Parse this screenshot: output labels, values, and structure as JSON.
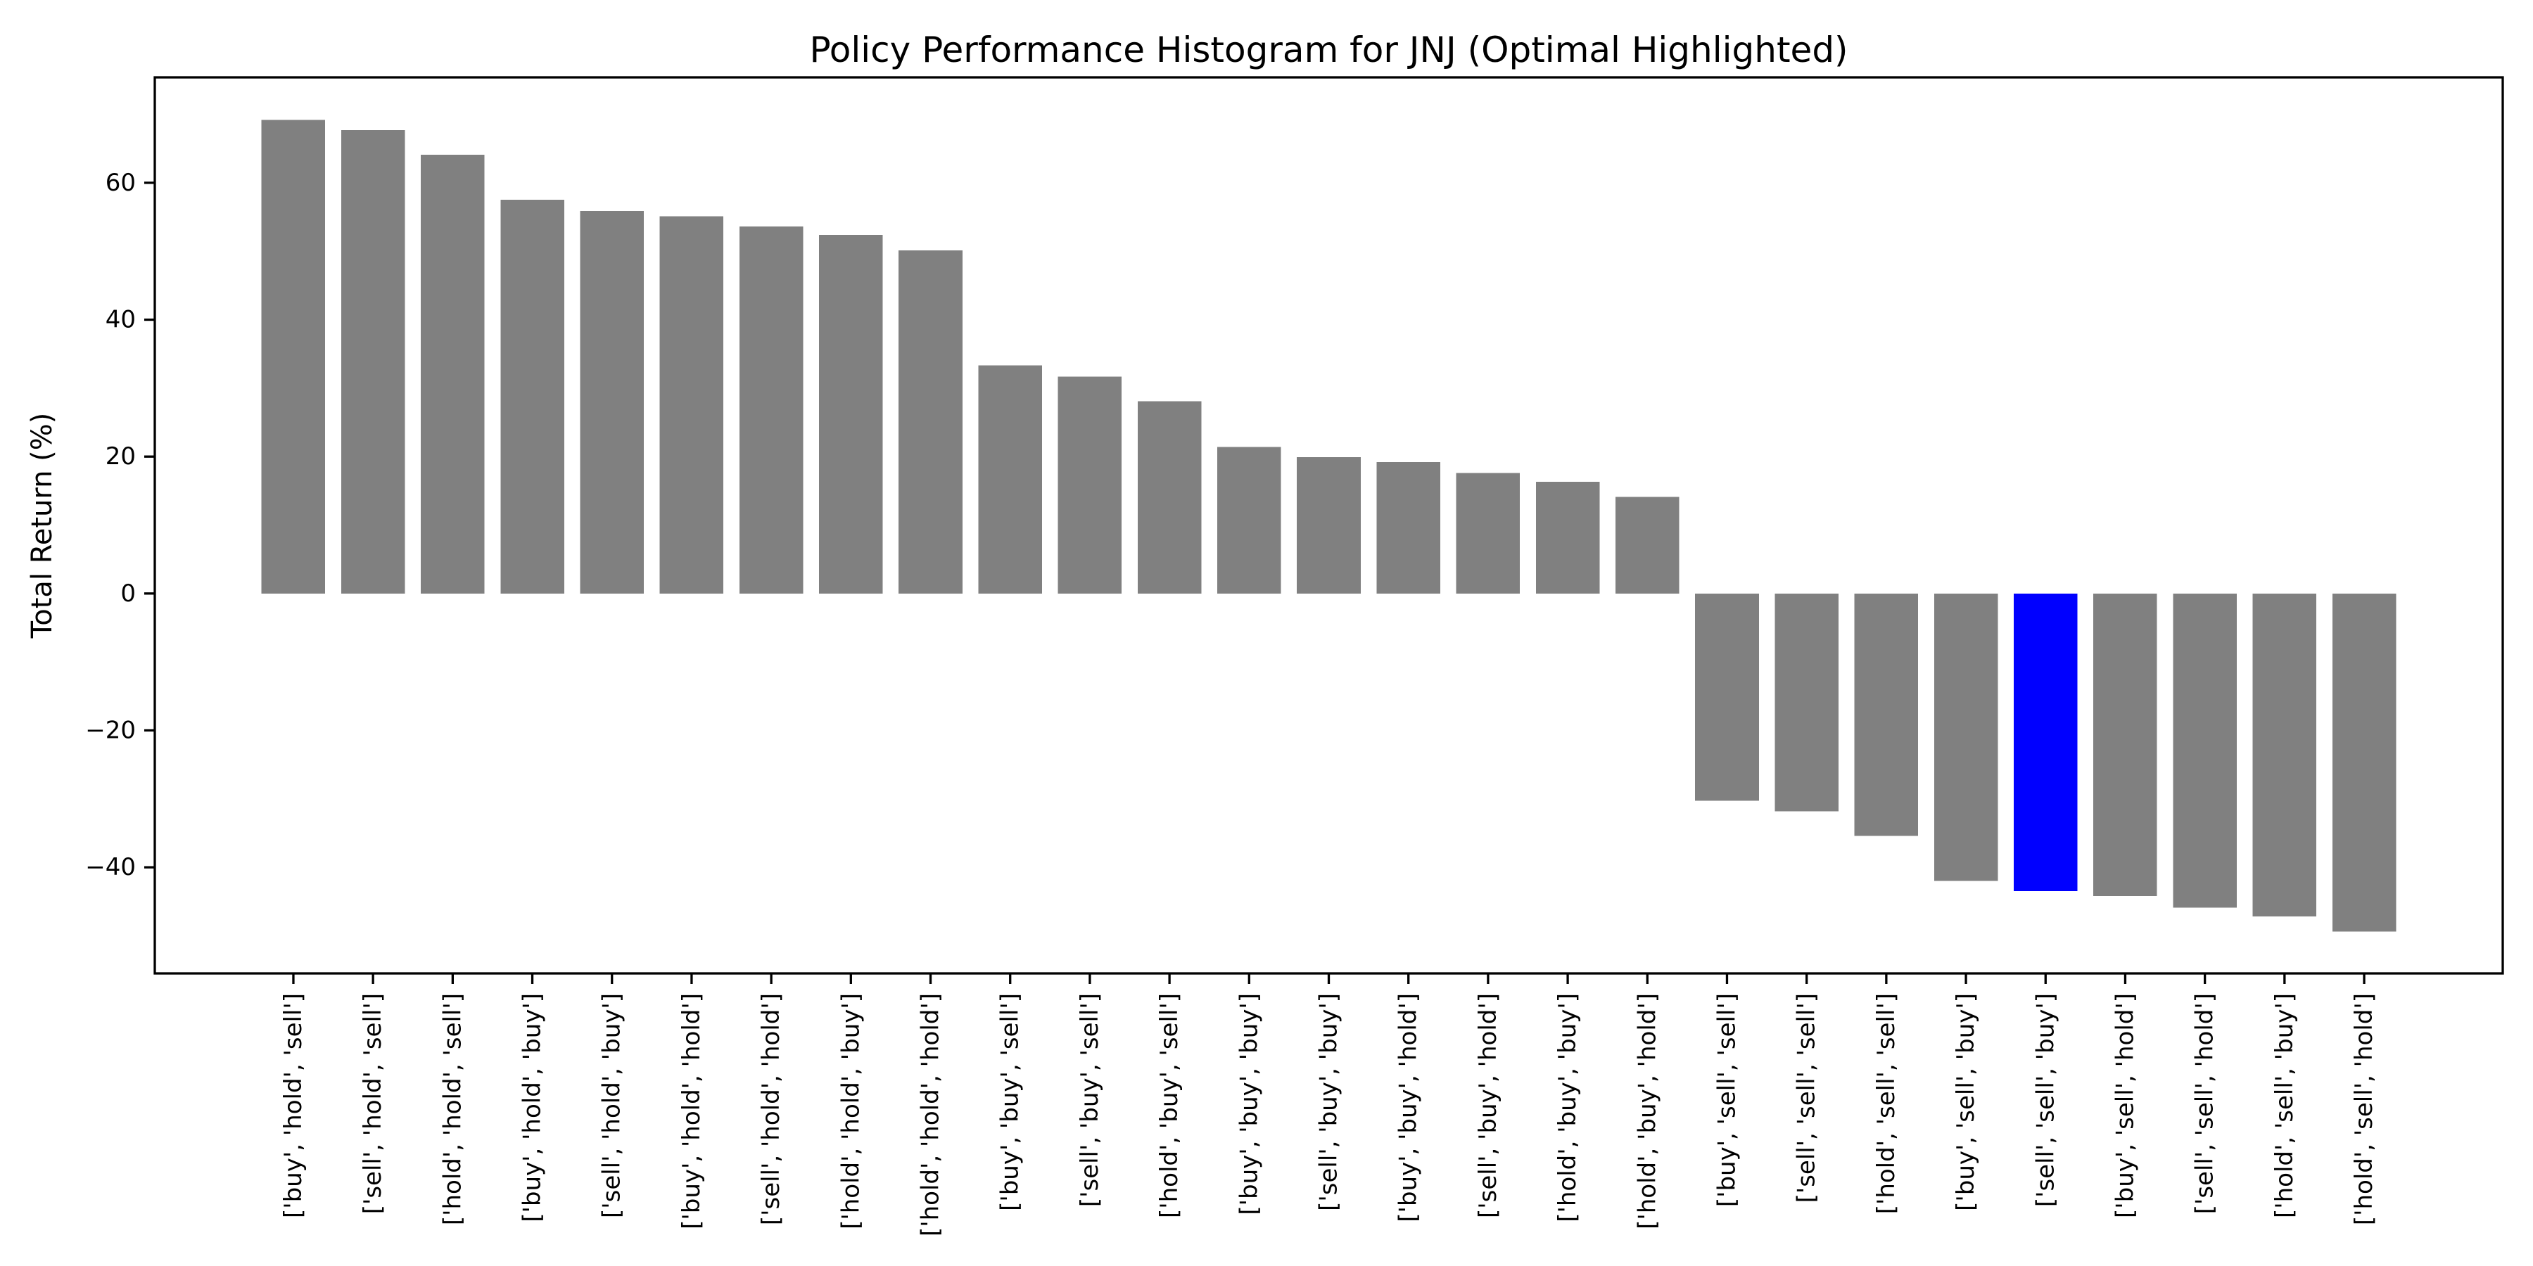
{
  "chart_data": {
    "type": "bar",
    "title": "Policy Performance Histogram for JNJ (Optimal Highlighted)",
    "xlabel": "",
    "ylabel": "Total Return (%)",
    "categories": [
      "['buy', 'hold', 'sell']",
      "['sell', 'hold', 'sell']",
      "['hold', 'hold', 'sell']",
      "['buy', 'hold', 'buy']",
      "['sell', 'hold', 'buy']",
      "['buy', 'hold', 'hold']",
      "['sell', 'hold', 'hold']",
      "['hold', 'hold', 'buy']",
      "['hold', 'hold', 'hold']",
      "['buy', 'buy', 'sell']",
      "['sell', 'buy', 'sell']",
      "['hold', 'buy', 'sell']",
      "['buy', 'buy', 'buy']",
      "['sell', 'buy', 'buy']",
      "['buy', 'buy', 'hold']",
      "['sell', 'buy', 'hold']",
      "['hold', 'buy', 'buy']",
      "['hold', 'buy', 'hold']",
      "['buy', 'sell', 'sell']",
      "['sell', 'sell', 'sell']",
      "['hold', 'sell', 'sell']",
      "['buy', 'sell', 'buy']",
      "['sell', 'sell', 'buy']",
      "['buy', 'sell', 'hold']",
      "['sell', 'sell', 'hold']",
      "['hold', 'sell', 'buy']",
      "['hold', 'sell', 'hold']"
    ],
    "values": [
      69.2,
      67.7,
      64.1,
      57.5,
      55.9,
      55.1,
      53.6,
      52.4,
      50.1,
      33.3,
      31.7,
      28.1,
      21.4,
      19.9,
      19.2,
      17.6,
      16.3,
      14.1,
      -30.3,
      -31.8,
      -35.4,
      -42.0,
      -43.5,
      -44.2,
      -45.9,
      -47.2,
      -49.4
    ],
    "highlight_index": 22,
    "highlight_category": "['sell', 'sell', 'buy']",
    "colors": {
      "bar_default": "#808080",
      "bar_highlight": "#0000ff",
      "text": "#000000",
      "background": "#ffffff",
      "axis": "#000000"
    },
    "yticks": [
      -40,
      -20,
      0,
      20,
      40,
      60
    ],
    "ytick_labels": [
      "−40",
      "−20",
      "0",
      "20",
      "40",
      "60"
    ],
    "ylim": [
      -55.5,
      75.4
    ],
    "xlim": [
      -1.74,
      27.74
    ],
    "bar_width": 0.8,
    "grid": false,
    "legend": "none"
  }
}
